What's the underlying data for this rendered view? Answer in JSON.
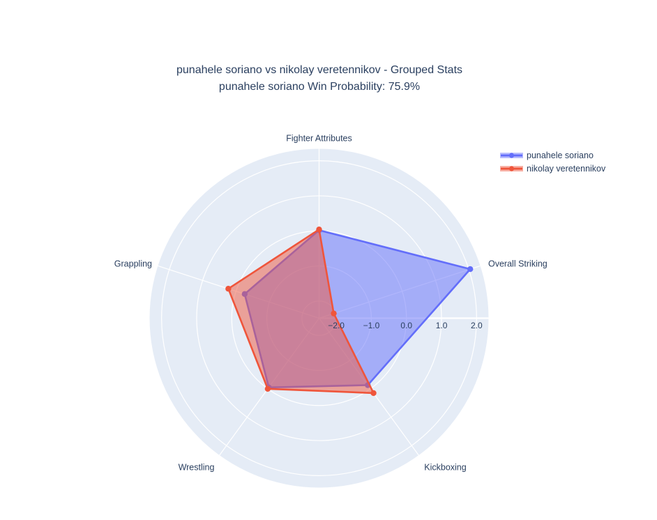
{
  "title": {
    "line1": "punahele soriano vs nikolay veretennikov - Grouped Stats",
    "line2": "punahele soriano Win Probability: 75.9%"
  },
  "legend": {
    "items": [
      {
        "label": "punahele soriano",
        "color": "#636efa"
      },
      {
        "label": "nikolay veretennikov",
        "color": "#ef553b"
      }
    ]
  },
  "chart_data": {
    "type": "radar",
    "categories": [
      "Fighter Attributes",
      "Overall Striking",
      "Kickboxing",
      "Wrestling",
      "Grappling"
    ],
    "series": [
      {
        "name": "punahele soriano",
        "color": "#636efa",
        "values": [
          0.02,
          2.04,
          -0.13,
          -0.05,
          -0.26
        ]
      },
      {
        "name": "nikolay veretennikov",
        "color": "#ef553b",
        "values": [
          0.04,
          -2.05,
          0.15,
          0.0,
          0.23
        ]
      }
    ],
    "radial_ticks": [
      -2,
      -1,
      0,
      1,
      2
    ],
    "radial_tick_labels": [
      "−2.0",
      "−1.0",
      "0.0",
      "1.0",
      "2.0"
    ],
    "radial_range": [
      -2.49,
      2.34
    ],
    "rotation_deg": 90,
    "direction": "clockwise",
    "grid": true,
    "legend_position": "top-right",
    "fill_opacity": 0.5,
    "plot_bgcolor": "#e5ecf6",
    "grid_color": "#ffffff",
    "text_color": "#2a3f5f"
  }
}
